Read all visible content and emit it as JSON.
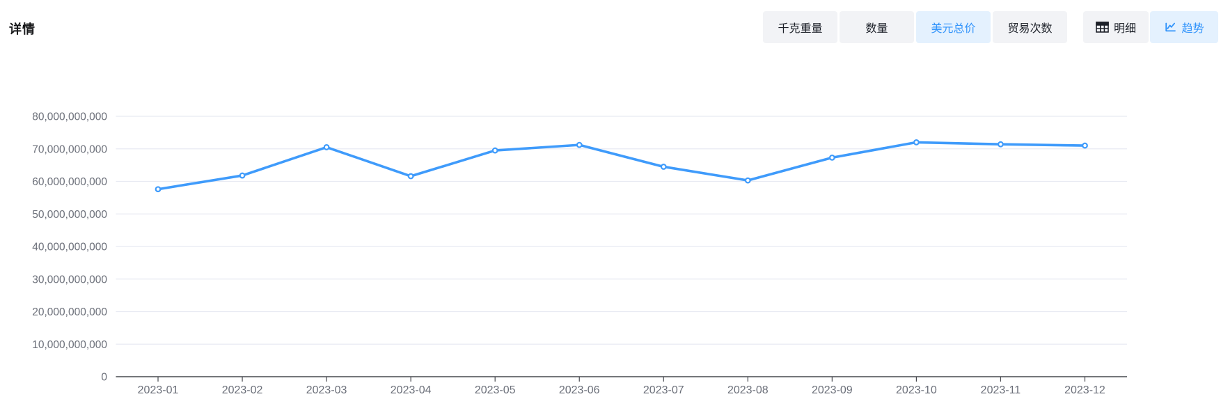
{
  "page": {
    "title": "详情"
  },
  "toolbar": {
    "metric_buttons": [
      {
        "label": "千克重量",
        "selected": false
      },
      {
        "label": "数量",
        "selected": false
      },
      {
        "label": "美元总价",
        "selected": true
      },
      {
        "label": "贸易次数",
        "selected": false
      }
    ],
    "view_buttons": [
      {
        "label": "明细",
        "icon": "table-icon",
        "selected": false
      },
      {
        "label": "趋势",
        "icon": "trend-icon",
        "selected": true
      }
    ]
  },
  "colors": {
    "accent_blue": "#3093fb",
    "accent_blue_bg": "#e4f1fe",
    "button_gray_bg": "#f2f3f6",
    "button_text": "#1d2129",
    "line": "#3f9bfb",
    "point_fill": "#ffffff",
    "grid": "#e8eaf2",
    "axis": "#47494f",
    "tick_label": "#6b6f79"
  },
  "chart_data": {
    "type": "line",
    "title": "",
    "xlabel": "",
    "ylabel": "",
    "x": [
      "2023-01",
      "2023-02",
      "2023-03",
      "2023-04",
      "2023-05",
      "2023-06",
      "2023-07",
      "2023-08",
      "2023-09",
      "2023-10",
      "2023-11",
      "2023-12"
    ],
    "series": [
      {
        "name": "美元总价",
        "values": [
          57600000000,
          61800000000,
          70500000000,
          61600000000,
          69500000000,
          71200000000,
          64500000000,
          60300000000,
          67300000000,
          72000000000,
          71400000000,
          71000000000
        ]
      }
    ],
    "ylim": [
      0,
      80000000000
    ],
    "y_tick_step": 10000000000,
    "grid": true,
    "legend": "none",
    "point_style": "hollow-circle",
    "x_axis_type": "category-boundary-gap"
  }
}
